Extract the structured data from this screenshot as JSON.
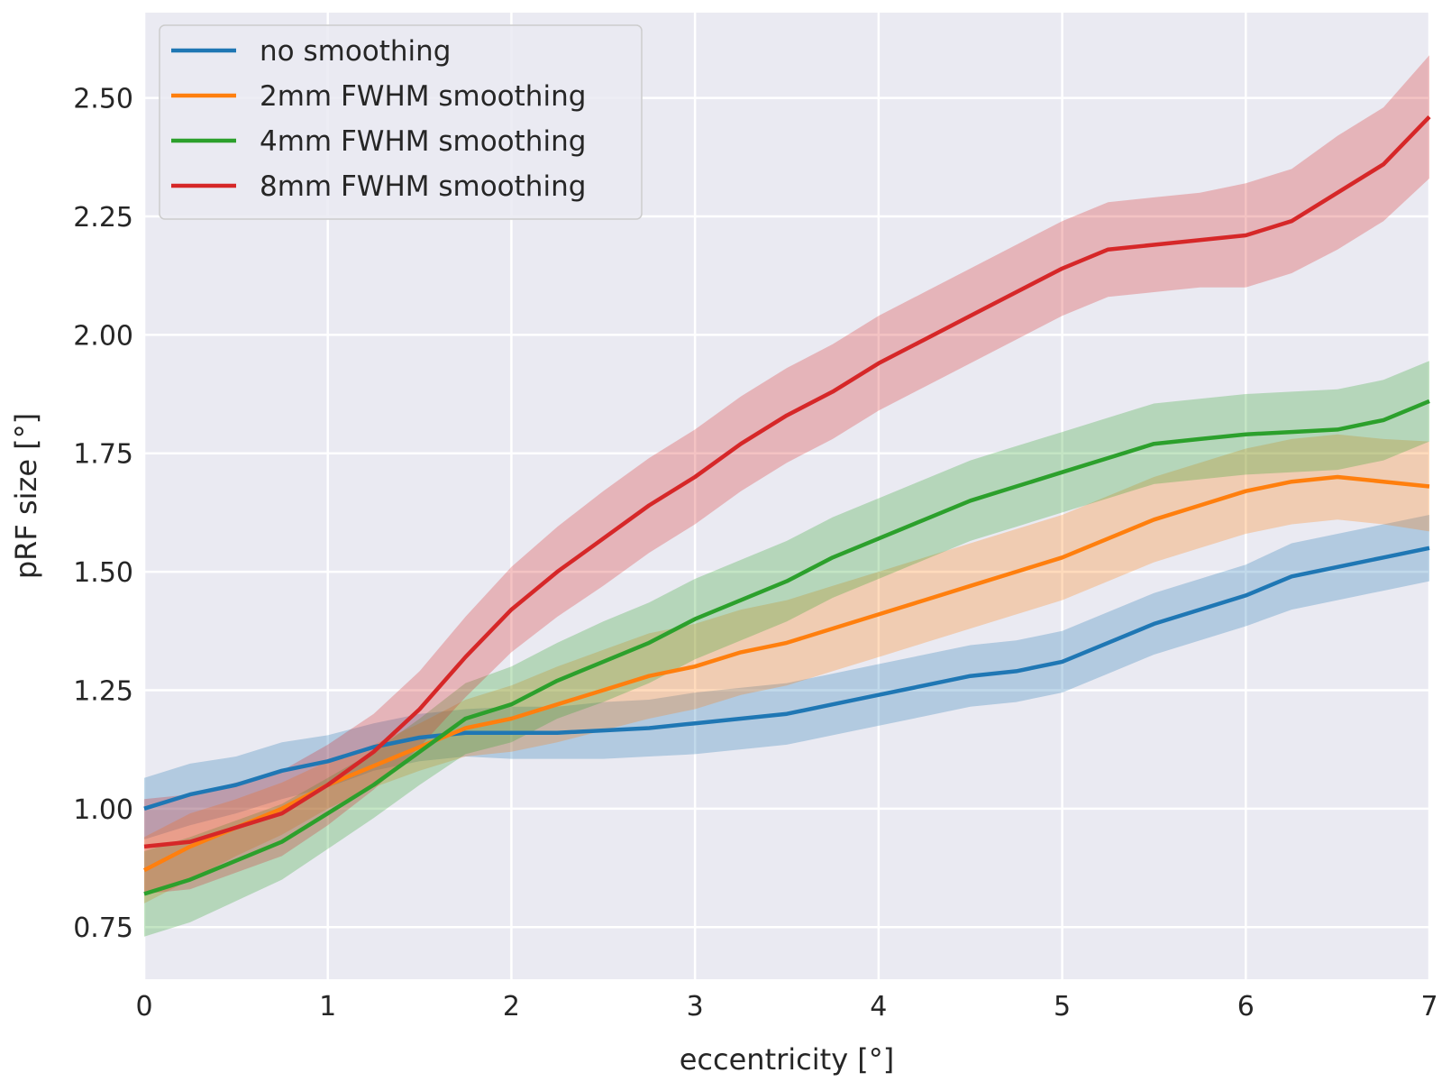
{
  "chart_data": {
    "type": "line",
    "title": "",
    "xlabel": "eccentricity [°]",
    "ylabel": "pRF size [°]",
    "xlim": [
      0,
      7
    ],
    "ylim": [
      0.64,
      2.68
    ],
    "xticks": [
      0,
      1,
      2,
      3,
      4,
      5,
      6,
      7
    ],
    "xtick_labels": [
      "0",
      "1",
      "2",
      "3",
      "4",
      "5",
      "6",
      "7"
    ],
    "yticks": [
      0.75,
      1.0,
      1.25,
      1.5,
      1.75,
      2.0,
      2.25,
      2.5
    ],
    "ytick_labels": [
      "0.75",
      "1.00",
      "1.25",
      "1.50",
      "1.75",
      "2.00",
      "2.25",
      "2.50"
    ],
    "grid": true,
    "legend_position": "top-left",
    "background_color": "#eaeaf2",
    "grid_color": "#ffffff",
    "x": [
      0,
      0.25,
      0.5,
      0.75,
      1.0,
      1.25,
      1.5,
      1.75,
      2.0,
      2.25,
      2.5,
      2.75,
      3.0,
      3.25,
      3.5,
      3.75,
      4.0,
      4.25,
      4.5,
      4.75,
      5.0,
      5.25,
      5.5,
      5.75,
      6.0,
      6.25,
      6.5,
      6.75,
      7.0
    ],
    "series": [
      {
        "name": "no smoothing",
        "color": "#1f77b4",
        "values": [
          1.0,
          1.03,
          1.05,
          1.08,
          1.1,
          1.13,
          1.15,
          1.16,
          1.16,
          1.16,
          1.165,
          1.17,
          1.18,
          1.19,
          1.2,
          1.22,
          1.24,
          1.26,
          1.28,
          1.29,
          1.31,
          1.35,
          1.39,
          1.42,
          1.45,
          1.49,
          1.51,
          1.53,
          1.55
        ],
        "band": [
          0.065,
          0.065,
          0.06,
          0.06,
          0.055,
          0.05,
          0.05,
          0.05,
          0.055,
          0.055,
          0.06,
          0.06,
          0.065,
          0.065,
          0.065,
          0.065,
          0.065,
          0.065,
          0.065,
          0.065,
          0.065,
          0.065,
          0.065,
          0.065,
          0.065,
          0.07,
          0.07,
          0.07,
          0.07
        ]
      },
      {
        "name": "2mm FWHM smoothing",
        "color": "#ff7f0e",
        "values": [
          0.87,
          0.92,
          0.96,
          1.0,
          1.05,
          1.09,
          1.13,
          1.17,
          1.19,
          1.22,
          1.25,
          1.28,
          1.3,
          1.33,
          1.35,
          1.38,
          1.41,
          1.44,
          1.47,
          1.5,
          1.53,
          1.57,
          1.61,
          1.64,
          1.67,
          1.69,
          1.7,
          1.69,
          1.68
        ],
        "band": [
          0.07,
          0.07,
          0.06,
          0.055,
          0.05,
          0.045,
          0.05,
          0.06,
          0.07,
          0.08,
          0.085,
          0.09,
          0.09,
          0.09,
          0.09,
          0.09,
          0.09,
          0.09,
          0.09,
          0.09,
          0.09,
          0.09,
          0.09,
          0.09,
          0.09,
          0.09,
          0.09,
          0.09,
          0.095
        ]
      },
      {
        "name": "4mm FWHM smoothing",
        "color": "#2ca02c",
        "values": [
          0.82,
          0.85,
          0.89,
          0.93,
          0.99,
          1.05,
          1.12,
          1.19,
          1.22,
          1.27,
          1.31,
          1.35,
          1.4,
          1.44,
          1.48,
          1.53,
          1.57,
          1.61,
          1.65,
          1.68,
          1.71,
          1.74,
          1.77,
          1.78,
          1.79,
          1.795,
          1.8,
          1.82,
          1.86
        ],
        "band": [
          0.09,
          0.09,
          0.085,
          0.08,
          0.075,
          0.07,
          0.07,
          0.075,
          0.08,
          0.08,
          0.085,
          0.085,
          0.085,
          0.085,
          0.085,
          0.085,
          0.085,
          0.085,
          0.085,
          0.085,
          0.085,
          0.085,
          0.085,
          0.085,
          0.085,
          0.085,
          0.085,
          0.085,
          0.085
        ]
      },
      {
        "name": "8mm FWHM smoothing",
        "color": "#d62728",
        "values": [
          0.92,
          0.93,
          0.96,
          0.99,
          1.05,
          1.12,
          1.21,
          1.32,
          1.42,
          1.5,
          1.57,
          1.64,
          1.7,
          1.77,
          1.83,
          1.88,
          1.94,
          1.99,
          2.04,
          2.09,
          2.14,
          2.18,
          2.19,
          2.2,
          2.21,
          2.24,
          2.3,
          2.36,
          2.46
        ],
        "band": [
          0.1,
          0.1,
          0.095,
          0.09,
          0.085,
          0.08,
          0.08,
          0.085,
          0.09,
          0.095,
          0.1,
          0.1,
          0.1,
          0.1,
          0.1,
          0.1,
          0.1,
          0.1,
          0.1,
          0.1,
          0.1,
          0.1,
          0.1,
          0.1,
          0.11,
          0.11,
          0.12,
          0.12,
          0.13
        ]
      }
    ]
  }
}
